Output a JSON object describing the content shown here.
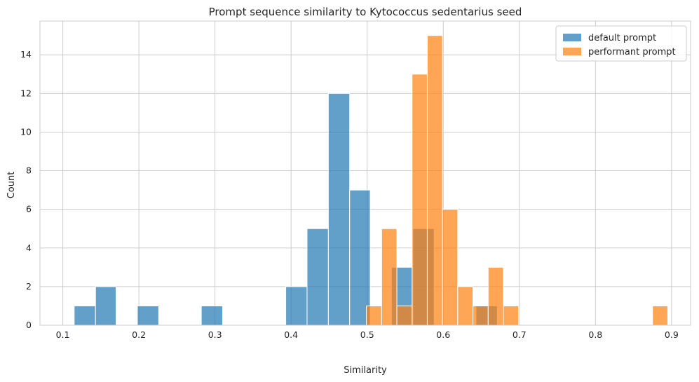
{
  "chart_data": {
    "type": "histogram",
    "title": "Prompt sequence similarity to Kytococcus sedentarius seed",
    "xlabel": "Similarity",
    "ylabel": "Count",
    "xlim": [
      0.07,
      0.925
    ],
    "ylim": [
      0,
      15.75
    ],
    "xticks": [
      "0.1",
      "0.2",
      "0.3",
      "0.4",
      "0.5",
      "0.6",
      "0.7",
      "0.8",
      "0.9"
    ],
    "yticks": [
      "0",
      "2",
      "4",
      "6",
      "8",
      "10",
      "12",
      "14"
    ],
    "grid": true,
    "legend_position": "top-right",
    "series": [
      {
        "name": "default prompt",
        "color": "#1f77b4",
        "bins": [
          {
            "x0": 0.115,
            "x1": 0.143,
            "count": 1
          },
          {
            "x0": 0.143,
            "x1": 0.17,
            "count": 2
          },
          {
            "x0": 0.198,
            "x1": 0.226,
            "count": 1
          },
          {
            "x0": 0.282,
            "x1": 0.31,
            "count": 1
          },
          {
            "x0": 0.393,
            "x1": 0.421,
            "count": 2
          },
          {
            "x0": 0.421,
            "x1": 0.449,
            "count": 5
          },
          {
            "x0": 0.449,
            "x1": 0.477,
            "count": 12
          },
          {
            "x0": 0.477,
            "x1": 0.504,
            "count": 7
          },
          {
            "x0": 0.532,
            "x1": 0.56,
            "count": 3
          },
          {
            "x0": 0.56,
            "x1": 0.588,
            "count": 5
          },
          {
            "x0": 0.643,
            "x1": 0.671,
            "count": 1
          }
        ]
      },
      {
        "name": "performant prompt",
        "color": "#ff7f0e",
        "bins": [
          {
            "x0": 0.499,
            "x1": 0.519,
            "count": 1
          },
          {
            "x0": 0.519,
            "x1": 0.539,
            "count": 5
          },
          {
            "x0": 0.539,
            "x1": 0.559,
            "count": 1
          },
          {
            "x0": 0.559,
            "x1": 0.579,
            "count": 13
          },
          {
            "x0": 0.579,
            "x1": 0.599,
            "count": 15
          },
          {
            "x0": 0.599,
            "x1": 0.619,
            "count": 6
          },
          {
            "x0": 0.619,
            "x1": 0.639,
            "count": 2
          },
          {
            "x0": 0.639,
            "x1": 0.659,
            "count": 1
          },
          {
            "x0": 0.659,
            "x1": 0.679,
            "count": 3
          },
          {
            "x0": 0.679,
            "x1": 0.699,
            "count": 1
          },
          {
            "x0": 0.875,
            "x1": 0.895,
            "count": 1
          }
        ]
      }
    ]
  }
}
